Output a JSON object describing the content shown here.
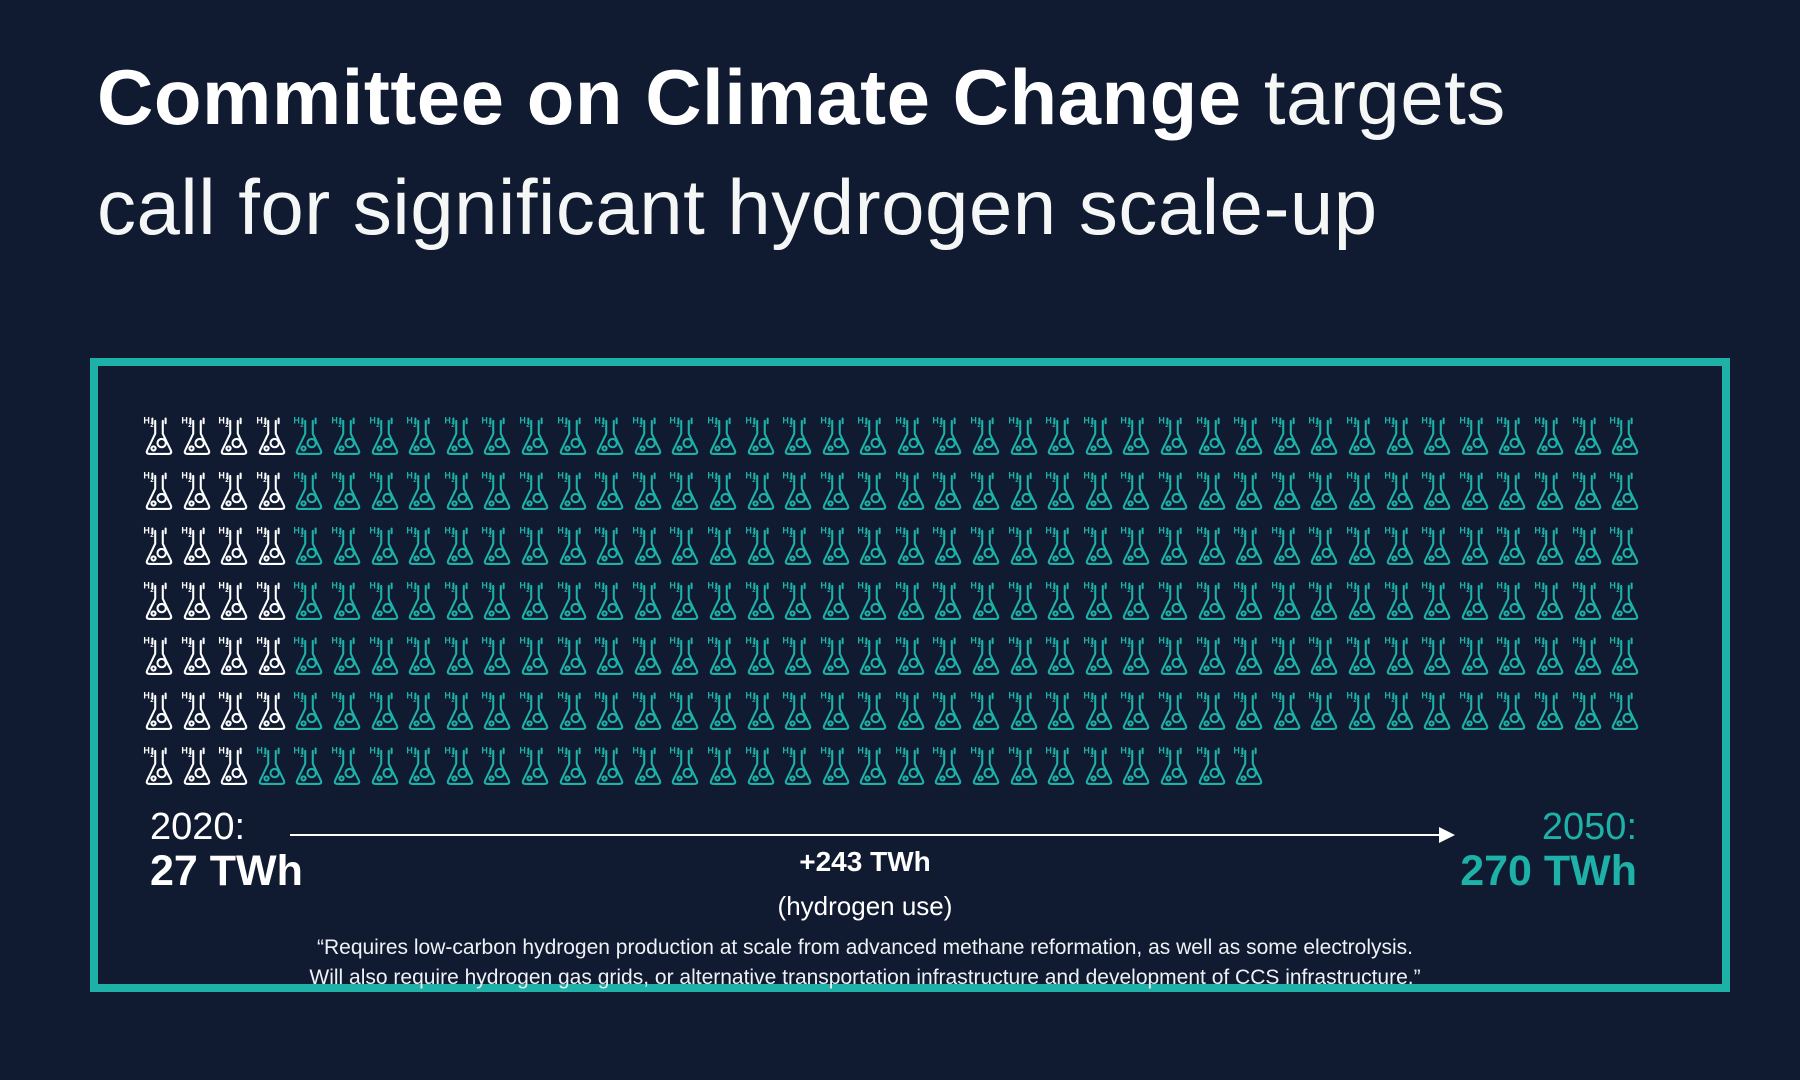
{
  "title": {
    "bold_text": "Committee on Climate Change",
    "light_text": " targets",
    "line2": "call for significant hydrogen scale-up"
  },
  "chart_data": {
    "type": "pictogram",
    "title": "Committee on Climate Change targets call for significant hydrogen scale-up",
    "icon": "erlenmeyer-flask-h2",
    "unit_per_icon_twh": 1,
    "rows": [
      {
        "total": 40,
        "highlighted_white": 4
      },
      {
        "total": 40,
        "highlighted_white": 4
      },
      {
        "total": 40,
        "highlighted_white": 4
      },
      {
        "total": 40,
        "highlighted_white": 4
      },
      {
        "total": 40,
        "highlighted_white": 4
      },
      {
        "total": 40,
        "highlighted_white": 4
      },
      {
        "total": 30,
        "highlighted_white": 3
      }
    ],
    "totals": {
      "white_icons": 27,
      "teal_icons": 243,
      "all_icons": 270
    },
    "start": {
      "year_label": "2020:",
      "value_label": "27 TWh"
    },
    "end": {
      "year_label": "2050:",
      "value_label": "270 TWh"
    },
    "delta": {
      "value_label": "+243 TWh",
      "sub_label": "(hydrogen use)"
    },
    "legend_position": "none",
    "grid": "off"
  },
  "quote": {
    "line1": "“Requires low-carbon hydrogen production at scale from advanced methane reformation, as well as some electrolysis.",
    "line2": "Will also require hydrogen gas grids, or alternative transportation infrastructure and development of CCS infrastructure.”"
  },
  "colors": {
    "background": "#101b31",
    "teal": "#1db1a8",
    "white": "#ffffff",
    "quote_text": "#eef1f5"
  }
}
